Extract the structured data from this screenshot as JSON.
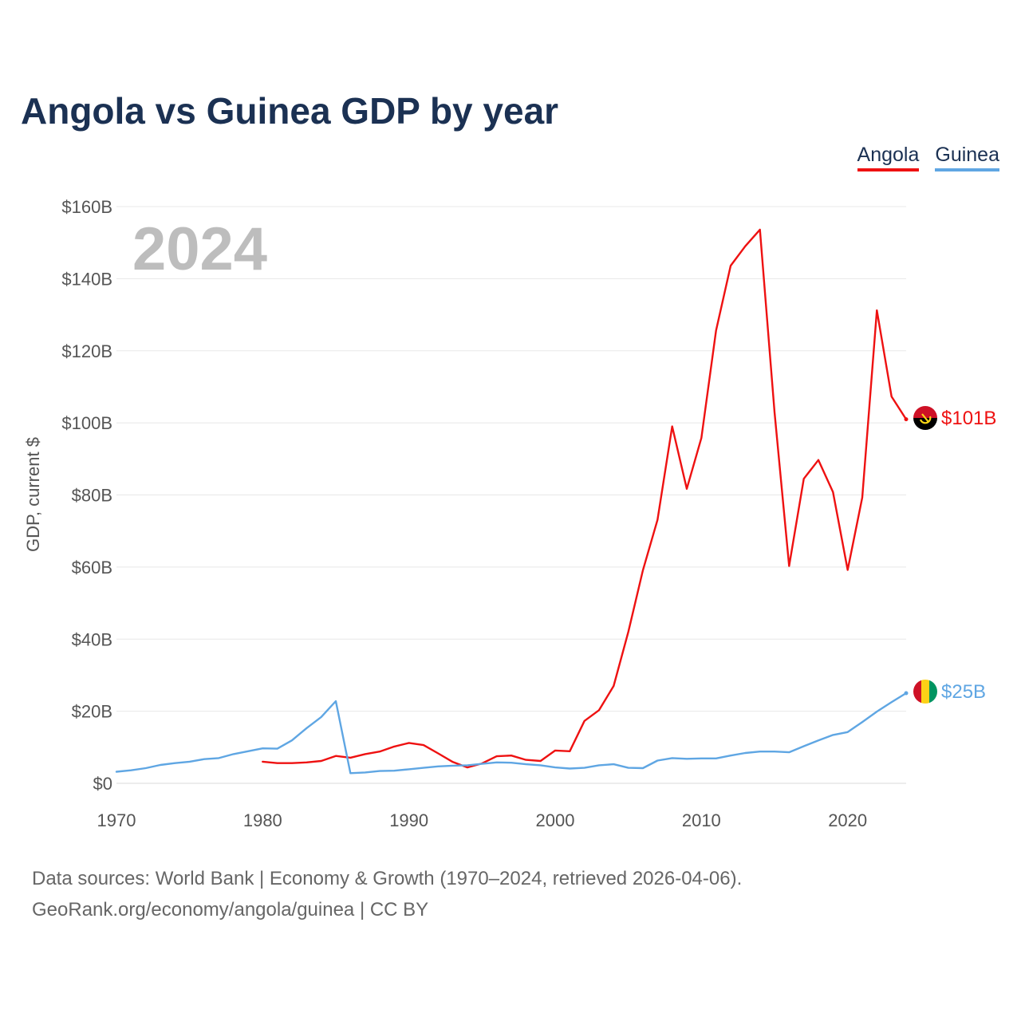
{
  "title": "Angola vs Guinea GDP by year",
  "legend": [
    {
      "label": "Angola",
      "color": "#ee1111"
    },
    {
      "label": "Guinea",
      "color": "#5fa6e3"
    }
  ],
  "year_label": "2024",
  "source": {
    "line1": "Data sources: World Bank | Economy & Growth (1970–2024, retrieved 2026-04-06).",
    "line2": "GeoRank.org/economy/angola/guinea | CC BY"
  },
  "chart_data": {
    "type": "line",
    "title": "Angola vs Guinea GDP by year",
    "xlabel": "",
    "ylabel": "GDP, current $",
    "xlim": [
      1970,
      2024
    ],
    "ylim": [
      0,
      160
    ],
    "x_ticks": [
      1970,
      1980,
      1990,
      2000,
      2010,
      2020
    ],
    "y_ticks": [
      0,
      20,
      40,
      60,
      80,
      100,
      120,
      140,
      160
    ],
    "y_tick_labels": [
      "$0",
      "$20B",
      "$40B",
      "$60B",
      "$80B",
      "$100B",
      "$120B",
      "$140B",
      "$160B"
    ],
    "grid": true,
    "legend": "top-right",
    "series": [
      {
        "name": "Angola",
        "color": "#ee1111",
        "end_label": "$101B",
        "points": [
          [
            1980,
            6.0
          ],
          [
            1981,
            5.6
          ],
          [
            1982,
            5.6
          ],
          [
            1983,
            5.8
          ],
          [
            1984,
            6.2
          ],
          [
            1985,
            7.6
          ],
          [
            1986,
            7.1
          ],
          [
            1987,
            8.1
          ],
          [
            1988,
            8.8
          ],
          [
            1989,
            10.2
          ],
          [
            1990,
            11.2
          ],
          [
            1991,
            10.6
          ],
          [
            1992,
            8.3
          ],
          [
            1993,
            5.9
          ],
          [
            1994,
            4.4
          ],
          [
            1995,
            5.5
          ],
          [
            1996,
            7.5
          ],
          [
            1997,
            7.7
          ],
          [
            1998,
            6.5
          ],
          [
            1999,
            6.2
          ],
          [
            2000,
            9.1
          ],
          [
            2001,
            8.9
          ],
          [
            2002,
            17.3
          ],
          [
            2003,
            20.3
          ],
          [
            2004,
            27.0
          ],
          [
            2005,
            42.0
          ],
          [
            2006,
            59.1
          ],
          [
            2007,
            73.1
          ],
          [
            2008,
            99.0
          ],
          [
            2009,
            81.7
          ],
          [
            2010,
            95.8
          ],
          [
            2011,
            125.6
          ],
          [
            2012,
            143.6
          ],
          [
            2013,
            149.0
          ],
          [
            2014,
            153.6
          ],
          [
            2015,
            103.0
          ],
          [
            2016,
            60.3
          ],
          [
            2017,
            84.5
          ],
          [
            2018,
            89.7
          ],
          [
            2019,
            80.8
          ],
          [
            2020,
            59.2
          ],
          [
            2021,
            79.3
          ],
          [
            2022,
            131.2
          ],
          [
            2023,
            107.3
          ],
          [
            2024,
            101.0
          ]
        ]
      },
      {
        "name": "Guinea",
        "color": "#5fa6e3",
        "end_label": "$25B",
        "points": [
          [
            1970,
            3.2
          ],
          [
            1971,
            3.6
          ],
          [
            1972,
            4.2
          ],
          [
            1973,
            5.1
          ],
          [
            1974,
            5.6
          ],
          [
            1975,
            6.0
          ],
          [
            1976,
            6.7
          ],
          [
            1977,
            7.0
          ],
          [
            1978,
            8.1
          ],
          [
            1979,
            8.9
          ],
          [
            1980,
            9.7
          ],
          [
            1981,
            9.6
          ],
          [
            1982,
            11.9
          ],
          [
            1983,
            15.3
          ],
          [
            1984,
            18.4
          ],
          [
            1985,
            22.8
          ],
          [
            1986,
            2.8
          ],
          [
            1987,
            3.0
          ],
          [
            1988,
            3.4
          ],
          [
            1989,
            3.5
          ],
          [
            1990,
            3.9
          ],
          [
            1991,
            4.3
          ],
          [
            1992,
            4.7
          ],
          [
            1993,
            4.9
          ],
          [
            1994,
            5.0
          ],
          [
            1995,
            5.4
          ],
          [
            1996,
            5.8
          ],
          [
            1997,
            5.7
          ],
          [
            1998,
            5.3
          ],
          [
            1999,
            5.0
          ],
          [
            2000,
            4.4
          ],
          [
            2001,
            4.1
          ],
          [
            2002,
            4.3
          ],
          [
            2003,
            5.0
          ],
          [
            2004,
            5.3
          ],
          [
            2005,
            4.3
          ],
          [
            2006,
            4.2
          ],
          [
            2007,
            6.3
          ],
          [
            2008,
            7.0
          ],
          [
            2009,
            6.8
          ],
          [
            2010,
            6.9
          ],
          [
            2011,
            6.9
          ],
          [
            2012,
            7.7
          ],
          [
            2013,
            8.4
          ],
          [
            2014,
            8.8
          ],
          [
            2015,
            8.8
          ],
          [
            2016,
            8.6
          ],
          [
            2017,
            10.3
          ],
          [
            2018,
            11.9
          ],
          [
            2019,
            13.4
          ],
          [
            2020,
            14.2
          ],
          [
            2021,
            17.0
          ],
          [
            2022,
            19.9
          ],
          [
            2023,
            22.5
          ],
          [
            2024,
            25.0
          ]
        ]
      }
    ]
  }
}
